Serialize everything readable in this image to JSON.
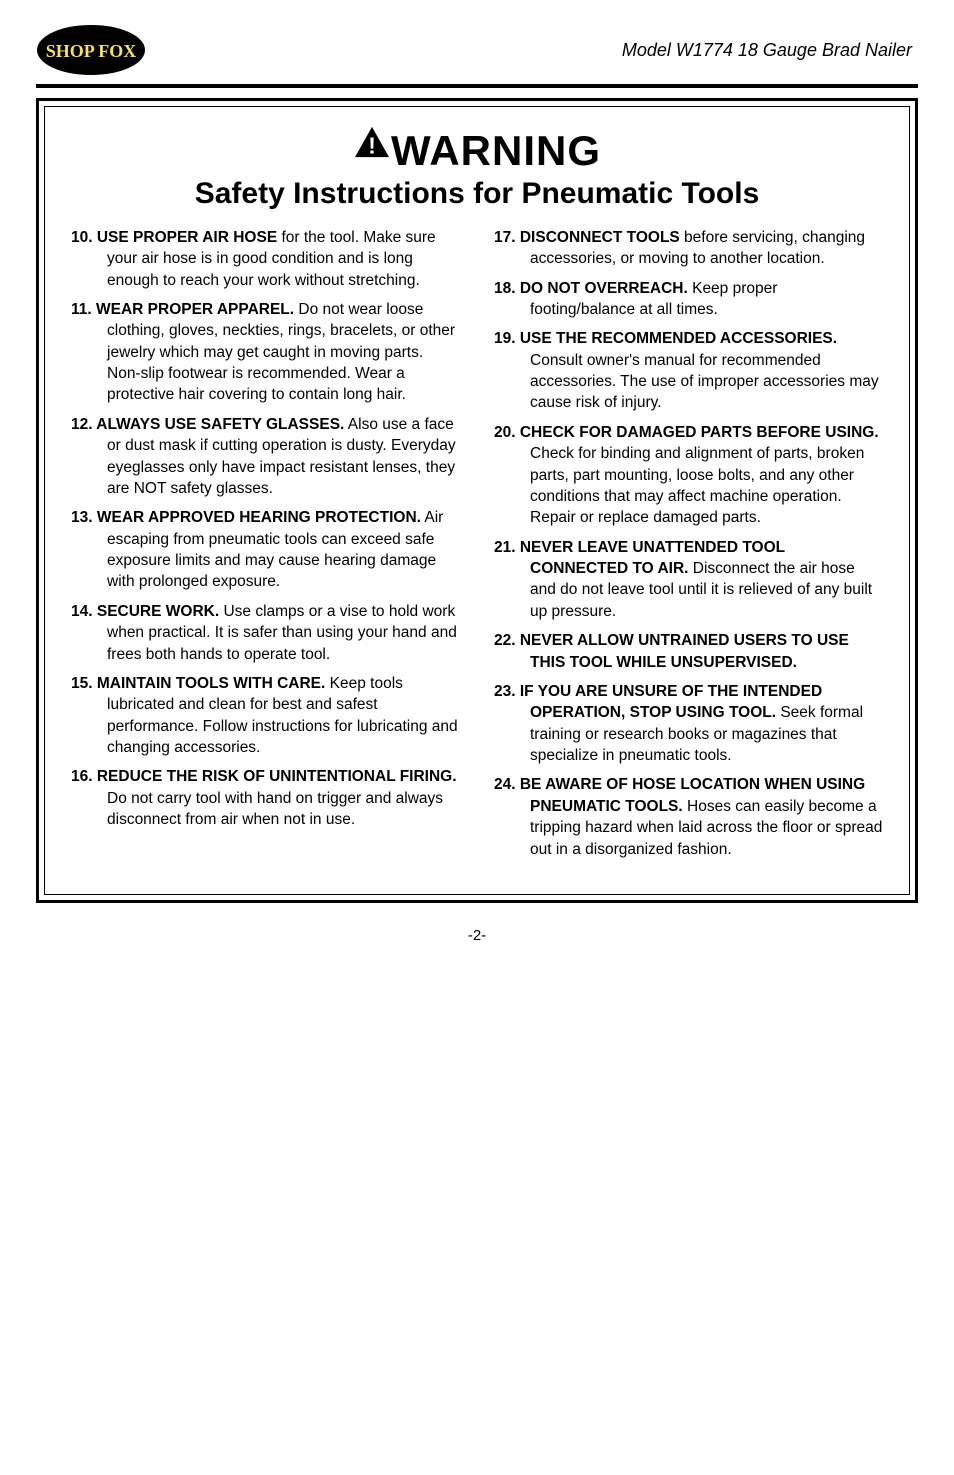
{
  "header": {
    "logo_text": "SHOP FOX",
    "model_line": "Model W1774  18 Gauge Brad Nailer"
  },
  "warning": {
    "label": "WARNING",
    "subtitle": "Safety Instructions for Pneumatic Tools"
  },
  "colors": {
    "text": "#000000",
    "background": "#ffffff",
    "rule": "#000000",
    "logo_fill": "#000000",
    "logo_text": "#f7e05a"
  },
  "left_items": [
    {
      "num": "10.",
      "lead": "USE PROPER AIR HOSE",
      "rest": " for the tool. Make sure your air hose is in good condition and is long enough to  reach your work without stretching."
    },
    {
      "num": "11.",
      "lead": "WEAR PROPER APPAREL.",
      "rest": " Do not wear loose clothing, gloves, neckties, rings, bracelets, or other jewelry which may get caught in moving parts. Non-slip footwear is recommended. Wear a protective hair covering to contain long hair."
    },
    {
      "num": "12.",
      "lead": "ALWAYS USE SAFETY GLASSES.",
      "rest": " Also use a face or dust mask if cutting operation is dusty. Everyday eyeglasses only have impact resistant lenses, they are NOT safety glasses."
    },
    {
      "num": "13.",
      "lead": "WEAR APPROVED HEARING PROTECTION.",
      "rest": " Air escaping from pneumatic tools can exceed safe exposure limits and may cause hearing damage with prolonged exposure."
    },
    {
      "num": "14.",
      "lead": "SECURE WORK.",
      "rest": " Use clamps or a vise to hold work when practical. It is safer than using your hand and frees both hands to operate tool."
    },
    {
      "num": "15.",
      "lead": "MAINTAIN TOOLS WITH CARE.",
      "rest": " Keep tools lubricated and clean for best and safest performance. Follow instructions for lubricating and changing accessories."
    },
    {
      "num": "16.",
      "lead": "REDUCE THE RISK OF UNINTENTIONAL FIRING.",
      "rest": " Do not carry tool with hand on trigger and always disconnect from air when not in use."
    }
  ],
  "right_items": [
    {
      "num": "17.",
      "lead": "DISCONNECT TOOLS",
      "rest": " before servicing, changing accessories, or moving to another location."
    },
    {
      "num": "18.",
      "lead": "DO NOT OVERREACH.",
      "rest": " Keep proper footing/balance at all times."
    },
    {
      "num": "19.",
      "lead": "USE THE RECOMMENDED ACCESSORIES.",
      "rest": " Consult owner's manual for recommended accessories. The use of improper accessories may cause risk of injury."
    },
    {
      "num": "20.",
      "lead": "CHECK FOR DAMAGED PARTS BEFORE USING.",
      "rest": " Check for binding and alignment of parts, broken parts, part mounting, loose bolts, and any other conditions that may affect machine operation. Repair or replace damaged parts."
    },
    {
      "num": "21.",
      "lead": "NEVER LEAVE UNATTENDED TOOL CONNECTED TO AIR.",
      "rest": " Disconnect the air hose and do not leave tool until it is relieved of any built up pressure."
    },
    {
      "num": "22.",
      "lead": "NEVER ALLOW UNTRAINED USERS TO USE THIS TOOL WHILE UNSUPERVISED.",
      "rest": ""
    },
    {
      "num": "23.",
      "lead": "IF YOU ARE UNSURE OF THE INTENDED OPERATION, STOP USING TOOL.",
      "rest": " Seek formal training or research books or magazines that specialize in pneumatic tools."
    },
    {
      "num": "24.",
      "lead": "BE AWARE OF HOSE LOCATION WHEN USING PNEUMATIC TOOLS.",
      "rest": " Hoses can easily become a tripping hazard when laid across the floor or spread out in a disorganized fashion."
    }
  ],
  "page_number": "-2-"
}
